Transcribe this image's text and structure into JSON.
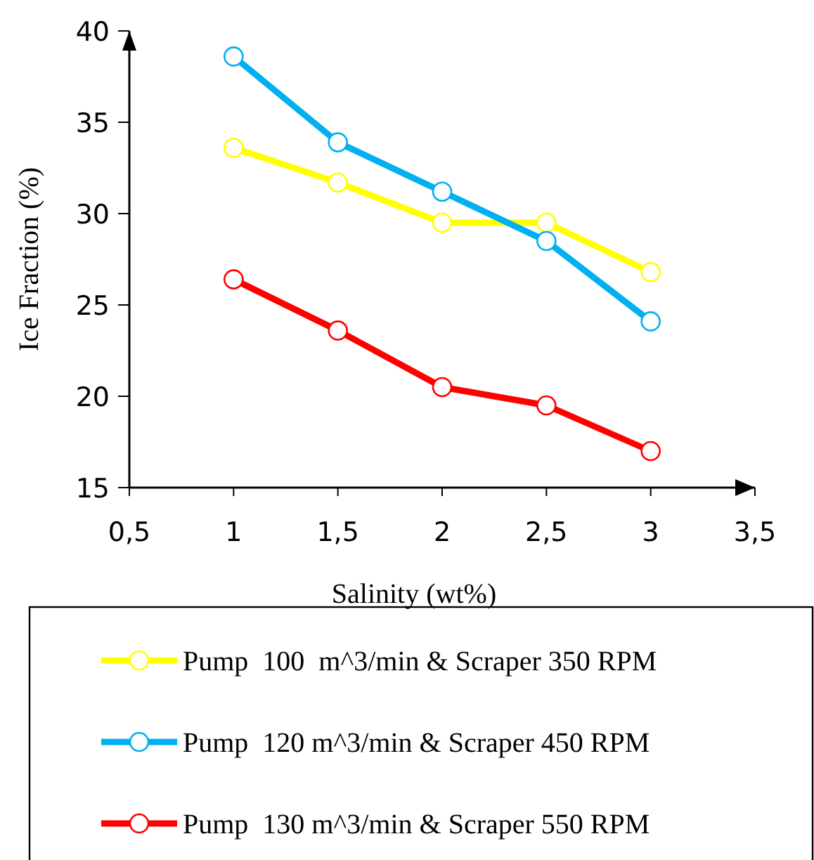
{
  "chart_data": {
    "type": "line",
    "xlabel": "Salinity (wt%)",
    "ylabel": "Ice Fraction (%)",
    "x": [
      1,
      1.5,
      2,
      2.5,
      3
    ],
    "xlim": [
      0.5,
      3.5
    ],
    "xticks": [
      {
        "value": 0.5,
        "label": "0,5"
      },
      1,
      {
        "value": 1.5,
        "label": "1,5"
      },
      2,
      {
        "value": 2.5,
        "label": "2,5"
      },
      3,
      {
        "value": 3.5,
        "label": "3,5"
      }
    ],
    "ylim": [
      15,
      40
    ],
    "yticks": [
      15,
      20,
      25,
      30,
      35,
      40
    ],
    "grid": false,
    "legend": "bottom",
    "marker": "circle",
    "line_style": "solid",
    "series": [
      {
        "name": "Pump  100  m^3/min & Scraper 350 RPM",
        "color": "#ffff00",
        "values": [
          33.6,
          31.7,
          29.5,
          29.5,
          26.8
        ]
      },
      {
        "name": "Pump  120 m^3/min & Scraper 450 RPM",
        "color": "#00b0f0",
        "values": [
          38.6,
          33.9,
          31.2,
          28.5,
          24.1
        ]
      },
      {
        "name": "Pump  130 m^3/min & Scraper 550 RPM",
        "color": "#ff0000",
        "values": [
          26.4,
          23.6,
          20.5,
          19.5,
          17.0
        ]
      }
    ]
  }
}
